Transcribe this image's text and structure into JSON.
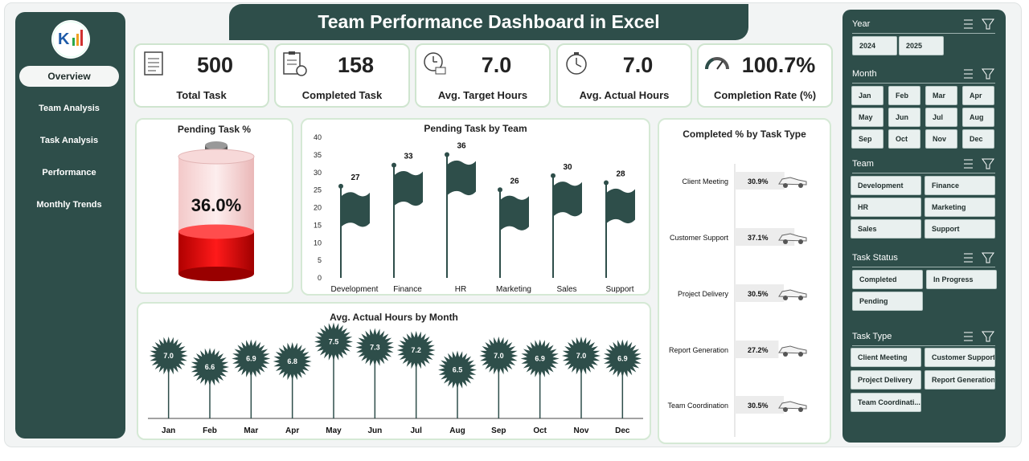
{
  "title": "Team Performance Dashboard in Excel",
  "nav": [
    {
      "label": "Overview",
      "active": true
    },
    {
      "label": "Team Analysis"
    },
    {
      "label": "Task  Analysis"
    },
    {
      "label": "Performance"
    },
    {
      "label": "Monthly Trends"
    }
  ],
  "kpis": [
    {
      "value": "500",
      "label": "Total Task",
      "icon": "task-list-icon"
    },
    {
      "value": "158",
      "label": "Completed Task",
      "icon": "clipboard-gear-icon"
    },
    {
      "value": "7.0",
      "label": "Avg. Target Hours",
      "icon": "clock-target-icon"
    },
    {
      "value": "7.0",
      "label": "Avg. Actual Hours",
      "icon": "stopwatch-icon"
    },
    {
      "value": "100.7%",
      "label": "Completion Rate (%)",
      "icon": "gauge-icon"
    }
  ],
  "pending_pct": {
    "title": "Pending Task %",
    "value": "36.0%",
    "fraction": 0.36
  },
  "chart_data": [
    {
      "type": "bar",
      "title": "Pending Task by Team",
      "categories": [
        "Development",
        "Finance",
        "HR",
        "Marketing",
        "Sales",
        "Support"
      ],
      "values": [
        27,
        33,
        36,
        26,
        30,
        28
      ],
      "ylim": [
        0,
        40
      ],
      "yticks": [
        0,
        5,
        10,
        15,
        20,
        25,
        30,
        35,
        40
      ]
    },
    {
      "type": "bar",
      "title": "Completed % by Task Type",
      "categories": [
        "Client Meeting",
        "Customer Support",
        "Project Delivery",
        "Report Generation",
        "Team Coordination"
      ],
      "values": [
        30.9,
        37.1,
        30.5,
        27.2,
        30.5
      ],
      "labels": [
        "30.9%",
        "37.1%",
        "30.5%",
        "27.2%",
        "30.5%"
      ]
    },
    {
      "type": "line",
      "title": "Avg. Actual Hours by Month",
      "categories": [
        "Jan",
        "Feb",
        "Mar",
        "Apr",
        "May",
        "Jun",
        "Jul",
        "Aug",
        "Sep",
        "Oct",
        "Nov",
        "Dec"
      ],
      "values": [
        7.0,
        6.6,
        6.9,
        6.8,
        7.5,
        7.3,
        7.2,
        6.5,
        7.0,
        6.9,
        7.0,
        6.9
      ],
      "labels": [
        "7.0",
        "6.6",
        "6.9",
        "6.8",
        "7.5",
        "7.3",
        "7.2",
        "6.5",
        "7.0",
        "6.9",
        "7.0",
        "6.9"
      ]
    }
  ],
  "slicers": [
    {
      "title": "Year",
      "items": [
        "2024",
        "2025"
      ]
    },
    {
      "title": "Month",
      "items": [
        "Jan",
        "Feb",
        "Mar",
        "Apr",
        "May",
        "Jun",
        "Jul",
        "Aug",
        "Sep",
        "Oct",
        "Nov",
        "Dec"
      ]
    },
    {
      "title": "Team",
      "items": [
        "Development",
        "Finance",
        "HR",
        "Marketing",
        "Sales",
        "Support"
      ]
    },
    {
      "title": "Task Status",
      "items": [
        "Completed",
        "In Progress",
        "Pending"
      ]
    },
    {
      "title": "Task Type",
      "items": [
        "Client Meeting",
        "Customer Support",
        "Project Delivery",
        "Report Generation",
        "Team Coordinati..."
      ]
    }
  ],
  "colors": {
    "primary": "#2e4e4a",
    "accent_red": "#e00000",
    "panel_border": "#d5e9d5"
  }
}
